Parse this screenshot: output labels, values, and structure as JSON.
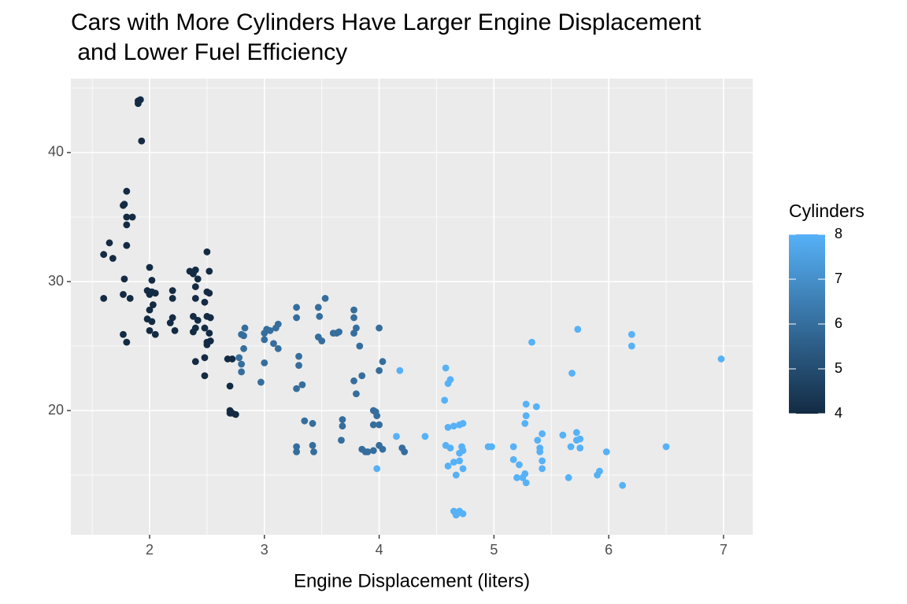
{
  "chart_data": {
    "type": "scatter",
    "title": "Cars with More Cylinders Have Larger Engine Displacement\n and Lower Fuel Efficiency",
    "x_label": "Engine Displacement (liters)",
    "x": [
      1.6,
      1.6,
      1.65,
      1.68,
      1.78,
      1.77,
      1.8,
      1.8,
      1.85,
      1.8,
      1.8,
      1.78,
      1.77,
      1.83,
      1.77,
      1.8,
      1.9,
      1.92,
      1.9,
      1.93,
      2.0,
      2.02,
      1.98,
      2.0,
      2.02,
      2.05,
      2.03,
      2.0,
      1.98,
      2.02,
      2.0,
      2.05,
      2.2,
      2.2,
      2.2,
      2.18,
      2.22,
      2.35,
      2.38,
      2.4,
      2.42,
      2.4,
      2.4,
      2.38,
      2.42,
      2.4,
      2.38,
      2.4,
      2.5,
      2.52,
      2.5,
      2.52,
      2.48,
      2.5,
      2.53,
      2.48,
      2.52,
      2.5,
      2.5,
      2.53,
      2.48,
      2.48,
      2.7,
      2.68,
      2.72,
      2.7,
      2.72,
      2.75,
      2.7,
      2.78,
      2.8,
      2.8,
      2.82,
      2.82,
      2.83,
      2.8,
      2.97,
      3.0,
      3.02,
      3.0,
      3.05,
      3.1,
      3.08,
      3.12,
      3.12,
      3.0,
      3.28,
      3.28,
      3.28,
      3.3,
      3.3,
      3.33,
      3.28,
      3.28,
      3.35,
      3.42,
      3.42,
      3.43,
      3.47,
      3.48,
      3.47,
      3.5,
      3.53,
      3.6,
      3.63,
      3.65,
      3.67,
      3.68,
      3.68,
      3.78,
      3.78,
      3.8,
      3.78,
      3.83,
      3.78,
      3.85,
      3.8,
      3.85,
      3.88,
      3.9,
      3.95,
      3.95,
      3.97,
      3.98,
      3.95,
      4.0,
      4.0,
      4.0,
      4.03,
      4.0,
      4.03,
      4.2,
      4.22,
      4.18,
      3.98,
      4.15,
      4.4,
      4.58,
      4.6,
      4.62,
      4.57,
      4.6,
      4.65,
      4.7,
      4.73,
      4.58,
      4.62,
      4.72,
      4.7,
      4.73,
      4.6,
      4.65,
      4.7,
      4.67,
      4.73,
      4.65,
      4.68,
      4.7,
      4.73,
      4.67,
      4.95,
      4.98,
      5.17,
      5.17,
      5.2,
      5.22,
      5.25,
      5.27,
      5.27,
      5.28,
      5.28,
      5.28,
      5.33,
      5.37,
      5.38,
      5.4,
      5.4,
      5.42,
      5.42,
      5.42,
      5.6,
      5.65,
      5.67,
      5.68,
      5.72,
      5.72,
      5.75,
      5.73,
      5.75,
      5.9,
      5.92,
      5.98,
      6.12,
      6.2,
      6.2,
      6.5,
      6.98
    ],
    "values": [
      28.7,
      32.1,
      33,
      31.8,
      36,
      35.9,
      37,
      35,
      35,
      34.4,
      32.8,
      30.2,
      29,
      28.7,
      25.9,
      25.3,
      44,
      44.1,
      43.8,
      40.9,
      31.1,
      30.1,
      29.3,
      29,
      29.2,
      29.1,
      28.2,
      27.8,
      27.1,
      26.9,
      26.2,
      25.9,
      29.3,
      28.7,
      27.2,
      26.8,
      26.2,
      30.8,
      30.6,
      30.9,
      30.2,
      29.6,
      28.7,
      27.3,
      27,
      26.4,
      26.1,
      23.8,
      32.3,
      30.8,
      29.2,
      29.1,
      28.4,
      27.3,
      27.2,
      26.4,
      26,
      25.3,
      25.1,
      25.4,
      24.1,
      22.7,
      21.9,
      24,
      24,
      20,
      19.8,
      19.7,
      19.8,
      24.1,
      23.6,
      23,
      24.8,
      25.8,
      26.4,
      25.9,
      22.2,
      26,
      26.3,
      25.5,
      26.2,
      26.4,
      25.2,
      24.8,
      26.7,
      23.7,
      28,
      27.2,
      21.7,
      24.2,
      23.5,
      22,
      17.2,
      16.8,
      19.2,
      19,
      17.3,
      16.8,
      28,
      27.3,
      25.7,
      25.4,
      28.7,
      26,
      26,
      26.1,
      17.7,
      18.8,
      19.3,
      27.8,
      27.2,
      26.4,
      26,
      25,
      22.3,
      22.7,
      21.3,
      17,
      16.8,
      16.8,
      16.9,
      20,
      19.9,
      19.6,
      18.9,
      18.9,
      26.4,
      23.1,
      23.8,
      17.3,
      17,
      17.1,
      16.8,
      23.1,
      15.5,
      18,
      18,
      23.3,
      22.1,
      22.4,
      20.8,
      18.7,
      18.8,
      18.9,
      19,
      17.3,
      17.1,
      17.2,
      16.7,
      16.9,
      15.7,
      16,
      16.1,
      15,
      15.5,
      12.2,
      12,
      12.2,
      12,
      11.9,
      17.2,
      17.2,
      17.2,
      16.2,
      14.8,
      15.8,
      14.8,
      15.1,
      19,
      19.6,
      20.5,
      14.4,
      25.3,
      20.3,
      17.7,
      17.1,
      16.8,
      18.2,
      15.5,
      16.1,
      18.1,
      14.8,
      17.2,
      22.9,
      18.3,
      17.7,
      17.1,
      26.3,
      17.8,
      15,
      15.3,
      16.8,
      14.2,
      25.9,
      25,
      17.2,
      24
    ],
    "color_values": [
      4,
      4,
      4,
      4,
      4,
      4,
      4,
      4,
      4,
      4,
      4,
      4,
      4,
      4,
      4,
      4,
      4,
      4,
      4,
      4,
      4,
      4,
      4,
      4,
      4,
      4,
      4,
      4,
      4,
      4,
      4,
      4,
      4,
      4,
      4,
      4,
      4,
      4,
      4,
      4,
      4,
      4,
      4,
      4,
      4,
      4,
      4,
      4,
      4,
      4,
      4,
      4,
      4,
      4,
      4,
      4,
      4,
      4,
      4,
      4,
      4,
      4,
      4,
      4,
      4,
      4,
      4,
      4,
      4,
      6,
      6,
      6,
      6,
      6,
      6,
      6,
      6,
      6,
      6,
      6,
      6,
      6,
      6,
      6,
      6,
      6,
      6,
      6,
      6,
      6,
      6,
      6,
      6,
      6,
      6,
      6,
      6,
      6,
      6,
      6,
      6,
      6,
      6,
      6,
      6,
      6,
      6,
      6,
      6,
      6,
      6,
      6,
      6,
      6,
      6,
      6,
      6,
      6,
      6,
      6,
      6,
      6,
      6,
      6,
      6,
      6,
      6,
      6,
      6,
      6,
      6,
      6,
      6,
      8,
      8,
      8,
      8,
      8,
      8,
      8,
      8,
      8,
      8,
      8,
      8,
      8,
      8,
      8,
      8,
      8,
      8,
      8,
      8,
      8,
      8,
      8,
      8,
      8,
      8,
      8,
      8,
      8,
      8,
      8,
      8,
      8,
      8,
      8,
      8,
      8,
      8,
      8,
      8,
      8,
      8,
      8,
      8,
      8,
      8,
      8,
      8,
      8,
      8,
      8,
      8,
      8,
      8,
      8,
      8,
      8,
      8,
      8,
      8,
      8,
      8,
      8,
      8
    ],
    "color_scale": {
      "title": "Cylinders",
      "low": "#132B43",
      "high": "#56B1F7",
      "lim": [
        4,
        8
      ],
      "ticks": [
        4,
        5,
        6,
        7,
        8
      ]
    },
    "xlim": [
      1.314,
      7.254
    ],
    "xticks": [
      2,
      3,
      4,
      5,
      6,
      7
    ],
    "ylim": [
      10.37,
      45.73
    ],
    "yticks": [
      20,
      30,
      40
    ],
    "grid": true,
    "panel_color": "#EBEBEB"
  }
}
